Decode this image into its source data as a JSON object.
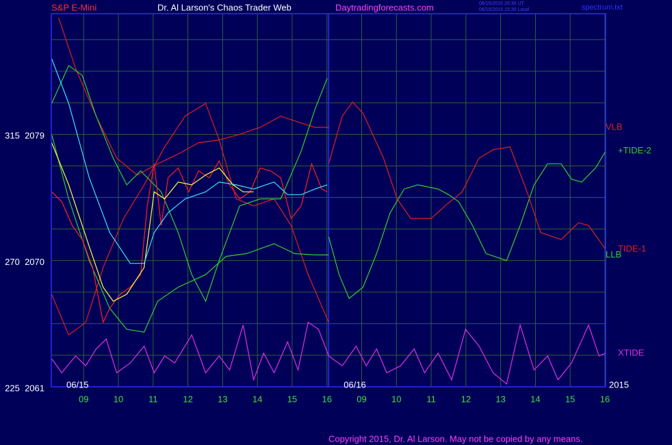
{
  "chart_data": {
    "type": "line",
    "symbol": "S&P E-Mini",
    "title": "Dr. Al Larson's Chaos Trader Web",
    "website": "Daytradingforecasts.com",
    "timestamps": [
      "06/15/2015 20:30 UT",
      "06/15/2015 15:30 Local"
    ],
    "file": "spectrum.txt",
    "copyright": "Copyright 2015, Dr. Al Larson. May not be copied by any means.",
    "year": "2015",
    "dates": [
      "06/15",
      "06/16"
    ],
    "xlim": [
      0.07,
      16.02
    ],
    "ylim": [
      2061,
      2087.6
    ],
    "xticks": [
      {
        "value": 1,
        "label": "09"
      },
      {
        "value": 2,
        "label": "10"
      },
      {
        "value": 3,
        "label": "11"
      },
      {
        "value": 4,
        "label": "12"
      },
      {
        "value": 5,
        "label": "13"
      },
      {
        "value": 6,
        "label": "14"
      },
      {
        "value": 7,
        "label": "15"
      },
      {
        "value": 8,
        "label": "16"
      },
      {
        "value": 9,
        "label": "09"
      },
      {
        "value": 10,
        "label": "10"
      },
      {
        "value": 11,
        "label": "11"
      },
      {
        "value": 12,
        "label": "12"
      },
      {
        "value": 13,
        "label": "13"
      },
      {
        "value": 14,
        "label": "14"
      },
      {
        "value": 15,
        "label": "15"
      },
      {
        "value": 16,
        "label": "16"
      }
    ],
    "yticks": [
      {
        "value": 2061,
        "label": "225  2061"
      },
      {
        "value": 2070,
        "label": "270  2070"
      },
      {
        "value": 2079,
        "label": "315  2079"
      }
    ],
    "ygrid": [
      2063.25,
      2065.5,
      2067.75,
      2072.25,
      2074.5,
      2076.75,
      2081.25,
      2083.5,
      2085.75
    ],
    "session_breaks": [
      8.05
    ],
    "grid": true,
    "series": [
      {
        "color": "#e02020",
        "x": [
          0.28,
          0.77,
          1.36,
          1.95,
          2.54,
          3.13,
          3.72,
          4.31,
          4.9,
          5.49,
          6.08,
          6.67,
          7.26,
          7.66,
          8.05
        ],
        "values": [
          2087.3,
          2083.7,
          2080.3,
          2077.3,
          2076.1,
          2076.9,
          2077.6,
          2078.4,
          2078.6,
          2079.0,
          2079.5,
          2080.3,
          2079.8,
          2079.5,
          2079.5
        ],
        "name": "VLB"
      },
      {
        "color": "#e02020",
        "x": [
          0.08,
          0.57,
          1.06,
          1.56,
          2.15,
          2.74,
          3.33,
          3.92,
          4.51,
          4.9,
          5.39,
          5.89,
          6.48,
          6.97,
          7.46,
          8.05
        ],
        "values": [
          2067.6,
          2064.7,
          2065.6,
          2069.5,
          2073.0,
          2075.4,
          2078.1,
          2080.3,
          2081.2,
          2078.6,
          2074.4,
          2073.9,
          2074.4,
          2072.5,
          2069.0,
          2065.6
        ]
      },
      {
        "color": "#30d030",
        "x": [
          0.08,
          0.57,
          0.96,
          1.36,
          1.85,
          2.24,
          2.64,
          3.23,
          3.72,
          4.11,
          4.51,
          4.9,
          5.49,
          6.08,
          6.67,
          7.26,
          7.66,
          8.01
        ],
        "values": [
          2081.2,
          2083.9,
          2083.2,
          2080.3,
          2077.3,
          2075.4,
          2076.4,
          2074.9,
          2072.0,
          2069.0,
          2067.1,
          2070.0,
          2073.9,
          2074.4,
          2074.4,
          2077.8,
          2080.8,
          2083.0
        ]
      },
      {
        "color": "#30d030",
        "x": [
          0.08,
          0.57,
          1.16,
          1.75,
          2.24,
          2.74,
          3.13,
          3.72,
          4.51,
          5.1,
          5.69,
          6.48,
          7.07,
          7.66,
          8.05
        ],
        "values": [
          2079.0,
          2074.4,
          2070.0,
          2066.6,
          2065.1,
          2064.9,
          2067.1,
          2068.1,
          2069.0,
          2070.3,
          2070.5,
          2071.2,
          2070.5,
          2070.4,
          2070.4
        ],
        "name": "LLB"
      },
      {
        "color": "#ff2020",
        "x": [
          0.08,
          0.37,
          0.67,
          0.96,
          1.26,
          1.56,
          1.75,
          2.05,
          2.34,
          2.64,
          2.83,
          3.03,
          3.23,
          3.43,
          3.72,
          4.02,
          4.31,
          4.61,
          4.9,
          5.2,
          5.49,
          5.79,
          6.08,
          6.38,
          6.67,
          6.97,
          7.26,
          7.56,
          7.85,
          8.01
        ],
        "values": [
          2074.9,
          2074.2,
          2072.5,
          2071.5,
          2069.5,
          2065.6,
          2066.6,
          2067.6,
          2068.1,
          2069.0,
          2073.9,
          2076.9,
          2072.5,
          2075.9,
          2076.6,
          2074.9,
          2076.4,
          2075.9,
          2077.1,
          2075.4,
          2074.4,
          2074.9,
          2076.6,
          2076.4,
          2075.9,
          2073.0,
          2073.9,
          2076.9,
          2075.1,
          2074.9
        ]
      },
      {
        "color": "#ffff40",
        "x": [
          0.08,
          0.57,
          1.16,
          1.56,
          1.85,
          2.24,
          2.74,
          3.03,
          3.33,
          3.72,
          4.11,
          4.51,
          4.9,
          5.3,
          5.59,
          5.89
        ],
        "values": [
          2078.4,
          2075.4,
          2071.0,
          2068.1,
          2067.1,
          2067.6,
          2069.5,
          2074.9,
          2074.4,
          2075.6,
          2075.4,
          2076.1,
          2076.6,
          2075.4,
          2074.9,
          2074.9
        ]
      },
      {
        "color": "#40e0ff",
        "x": [
          0.08,
          0.57,
          1.16,
          1.75,
          2.34,
          2.74,
          3.03,
          3.43,
          3.92,
          4.51,
          4.9,
          5.39,
          5.89,
          6.48,
          6.87,
          7.26,
          7.66,
          8.01
        ],
        "values": [
          2084.4,
          2081.2,
          2075.9,
          2072.0,
          2069.8,
          2069.8,
          2072.0,
          2073.4,
          2074.4,
          2074.9,
          2075.6,
          2075.4,
          2075.1,
          2075.6,
          2074.7,
          2074.7,
          2075.1,
          2075.4
        ]
      },
      {
        "color": "#30d030",
        "x": [
          8.05,
          8.35,
          8.64,
          9.04,
          9.43,
          9.82,
          10.22,
          10.61,
          11.2,
          11.5,
          11.79,
          12.19,
          12.58,
          13.17,
          13.56,
          13.96,
          14.35,
          14.74,
          15.04,
          15.33,
          15.73,
          16.02
        ],
        "values": [
          2071.7,
          2069.0,
          2067.3,
          2068.1,
          2070.5,
          2073.4,
          2075.1,
          2075.4,
          2075.1,
          2074.7,
          2074.2,
          2072.5,
          2070.5,
          2070.0,
          2072.5,
          2075.4,
          2076.9,
          2076.9,
          2075.8,
          2075.6,
          2076.6,
          2077.8
        ],
        "name": "+TIDE-2"
      },
      {
        "color": "#e02020",
        "x": [
          8.05,
          8.44,
          8.74,
          9.04,
          9.63,
          10.02,
          10.41,
          11.0,
          11.4,
          11.89,
          12.38,
          12.78,
          13.27,
          13.76,
          14.15,
          14.74,
          15.24,
          15.53,
          16.02
        ],
        "values": [
          2076.9,
          2080.3,
          2081.3,
          2080.5,
          2077.3,
          2074.4,
          2073.0,
          2073.0,
          2073.9,
          2074.9,
          2077.3,
          2077.9,
          2078.1,
          2074.9,
          2072.0,
          2071.5,
          2072.7,
          2072.5,
          2070.8
        ],
        "name": "TIDE-1"
      },
      {
        "color": "#e030e0",
        "x": [
          0.08,
          0.37,
          0.77,
          1.06,
          1.36,
          1.65,
          1.95,
          2.34,
          2.74,
          3.03,
          3.33,
          3.62,
          4.11,
          4.51,
          4.9,
          5.2,
          5.59,
          5.89,
          6.18,
          6.48,
          6.87,
          7.17,
          7.46,
          7.76,
          8.05,
          8.44,
          8.84,
          9.13,
          9.43,
          9.72,
          10.12,
          10.51,
          10.81,
          11.2,
          11.59,
          11.99,
          12.38,
          12.78,
          13.17,
          13.56,
          13.96,
          14.35,
          14.65,
          15.04,
          15.53,
          15.83,
          16.02
        ],
        "values": [
          2063.0,
          2062.0,
          2063.2,
          2062.5,
          2063.7,
          2064.4,
          2062.0,
          2062.7,
          2063.9,
          2062.0,
          2063.2,
          2062.7,
          2064.7,
          2062.0,
          2063.2,
          2062.2,
          2065.4,
          2061.5,
          2063.4,
          2062.0,
          2064.2,
          2062.2,
          2065.6,
          2065.1,
          2063.2,
          2062.5,
          2063.9,
          2062.5,
          2063.7,
          2062.0,
          2062.5,
          2063.7,
          2062.0,
          2063.4,
          2061.5,
          2065.1,
          2063.9,
          2062.0,
          2061.2,
          2065.4,
          2062.2,
          2063.2,
          2061.5,
          2062.7,
          2065.4,
          2063.2,
          2063.4
        ],
        "name": "XTIDE"
      }
    ]
  }
}
